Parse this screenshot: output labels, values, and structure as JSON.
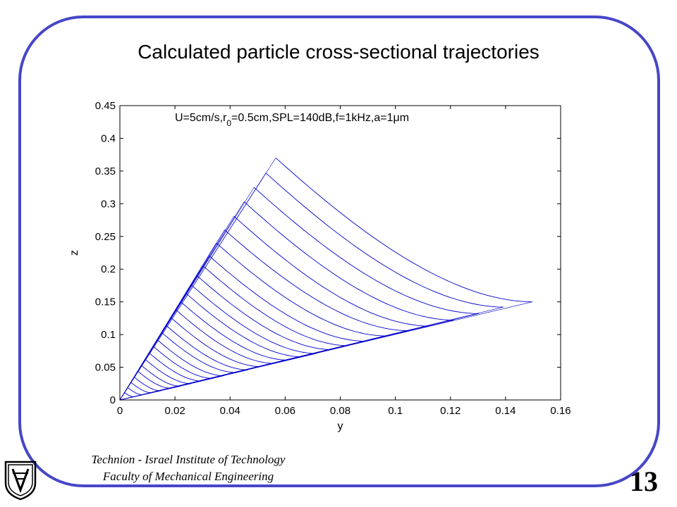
{
  "slide": {
    "title": "Calculated particle cross-sectional trajectories",
    "footer_line1": "Technion - Israel Institute of Technology",
    "footer_line2": "Faculty of Mechanical Engineering",
    "slide_number": "13"
  },
  "logo": {
    "icon": "technion-emblem-icon"
  },
  "colors": {
    "frame": "#4646c8",
    "series": "#0000cc"
  },
  "chart_data": {
    "type": "line",
    "title": "",
    "xlabel": "y",
    "ylabel": "z",
    "xlim": [
      0,
      0.16
    ],
    "ylim": [
      0,
      0.45
    ],
    "xticks": [
      "0",
      "0.02",
      "0.04",
      "0.06",
      "0.08",
      "0.1",
      "0.12",
      "0.14",
      "0.16"
    ],
    "yticks": [
      "0",
      "0.05",
      "0.1",
      "0.15",
      "0.2",
      "0.25",
      "0.3",
      "0.35",
      "0.4",
      "0.45"
    ],
    "annotation": {
      "parts": [
        {
          "text": "U=5cm/s,r"
        },
        {
          "text": "0",
          "sub": true
        },
        {
          "text": "=0.5cm,SPL=140dB,f=1kHz,a=1"
        },
        {
          "text": "μ",
          "symbol": true
        },
        {
          "text": "m"
        }
      ]
    },
    "grid": false,
    "legend": "none",
    "series_note": "family of trajectories from origin",
    "series": [
      {
        "start": [
          0.0566,
          0.37
        ],
        "end": [
          0.1497,
          0.15
        ]
      },
      {
        "start": [
          0.053,
          0.347
        ],
        "end": [
          0.1392,
          0.142
        ]
      },
      {
        "start": [
          0.0487,
          0.325
        ],
        "end": [
          0.1302,
          0.132
        ]
      },
      {
        "start": [
          0.0451,
          0.303
        ],
        "end": [
          0.1212,
          0.122
        ]
      },
      {
        "start": [
          0.0414,
          0.281
        ],
        "end": [
          0.1122,
          0.113
        ]
      },
      {
        "start": [
          0.038,
          0.26
        ],
        "end": [
          0.1045,
          0.106
        ]
      },
      {
        "start": [
          0.035,
          0.24
        ],
        "end": [
          0.0963,
          0.098
        ]
      },
      {
        "start": [
          0.0325,
          0.22
        ],
        "end": [
          0.0888,
          0.09
        ]
      },
      {
        "start": [
          0.0302,
          0.205
        ],
        "end": [
          0.0828,
          0.083
        ]
      },
      {
        "start": [
          0.028,
          0.19
        ],
        "end": [
          0.0768,
          0.077
        ]
      },
      {
        "start": [
          0.0259,
          0.176
        ],
        "end": [
          0.0713,
          0.071
        ]
      },
      {
        "start": [
          0.024,
          0.163
        ],
        "end": [
          0.066,
          0.066
        ]
      },
      {
        "start": [
          0.0221,
          0.15
        ],
        "end": [
          0.0608,
          0.061
        ]
      },
      {
        "start": [
          0.0203,
          0.138
        ],
        "end": [
          0.0558,
          0.056
        ]
      },
      {
        "start": [
          0.0185,
          0.126
        ],
        "end": [
          0.051,
          0.051
        ]
      },
      {
        "start": [
          0.0168,
          0.114
        ],
        "end": [
          0.0465,
          0.046
        ]
      },
      {
        "start": [
          0.0152,
          0.103
        ],
        "end": [
          0.0421,
          0.042
        ]
      },
      {
        "start": [
          0.0136,
          0.092
        ],
        "end": [
          0.0378,
          0.037
        ]
      },
      {
        "start": [
          0.0121,
          0.082
        ],
        "end": [
          0.0337,
          0.033
        ]
      },
      {
        "start": [
          0.0106,
          0.072
        ],
        "end": [
          0.0297,
          0.029
        ]
      },
      {
        "start": [
          0.0092,
          0.062
        ],
        "end": [
          0.0258,
          0.025
        ]
      },
      {
        "start": [
          0.0078,
          0.053
        ],
        "end": [
          0.022,
          0.021
        ]
      },
      {
        "start": [
          0.0065,
          0.044
        ],
        "end": [
          0.0184,
          0.018
        ]
      },
      {
        "start": [
          0.0052,
          0.035
        ],
        "end": [
          0.0149,
          0.014
        ]
      },
      {
        "start": [
          0.004,
          0.027
        ],
        "end": [
          0.0115,
          0.011
        ]
      },
      {
        "start": [
          0.0028,
          0.019
        ],
        "end": [
          0.0082,
          0.008
        ]
      },
      {
        "start": [
          0.0017,
          0.011
        ],
        "end": [
          0.005,
          0.005
        ]
      }
    ]
  }
}
